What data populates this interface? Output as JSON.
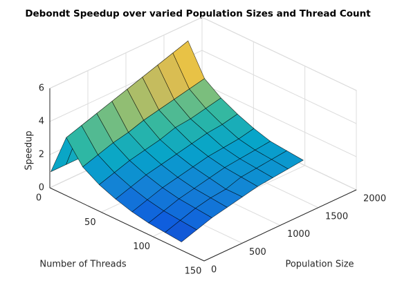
{
  "chart_data": {
    "type": "surface",
    "title": "Debondt Speedup over varied Population Sizes and Thread Count",
    "xlabel": "Number of Threads",
    "ylabel": "Population Size",
    "zlabel": "Speedup",
    "x": [
      1,
      16,
      32,
      48,
      64,
      80,
      96,
      112,
      128
    ],
    "y": [
      0,
      200,
      400,
      600,
      800,
      1000,
      1200,
      1400,
      1600
    ],
    "z": [
      [
        1.0,
        1.0,
        1.0,
        1.0,
        1.0,
        1.0,
        1.0,
        1.0,
        1.0
      ],
      [
        3.5,
        3.8,
        4.1,
        4.4,
        4.7,
        5.0,
        5.3,
        5.6,
        5.9
      ],
      [
        2.2,
        2.5,
        2.8,
        3.0,
        3.3,
        3.5,
        3.7,
        3.9,
        4.1
      ],
      [
        1.6,
        1.9,
        2.2,
        2.4,
        2.6,
        2.9,
        3.0,
        3.2,
        3.4
      ],
      [
        1.2,
        1.5,
        1.8,
        2.0,
        2.2,
        2.4,
        2.6,
        2.7,
        2.9
      ],
      [
        0.9,
        1.2,
        1.5,
        1.7,
        1.9,
        2.1,
        2.2,
        2.3,
        2.5
      ],
      [
        0.7,
        1.0,
        1.3,
        1.5,
        1.7,
        1.9,
        2.0,
        2.1,
        2.2
      ],
      [
        0.6,
        0.9,
        1.2,
        1.4,
        1.5,
        1.8,
        1.9,
        2.0,
        2.1
      ],
      [
        0.5,
        0.8,
        1.1,
        1.3,
        1.5,
        1.7,
        1.8,
        1.9,
        2.0
      ]
    ],
    "xlim": [
      0,
      150
    ],
    "xticks": [
      0,
      50,
      100,
      150
    ],
    "ylim": [
      0,
      2000
    ],
    "yticks": [
      0,
      500,
      1000,
      1500,
      2000
    ],
    "zlim": [
      0,
      6
    ],
    "zticks": [
      0,
      2,
      4,
      6
    ],
    "grid": true,
    "colormap": [
      "#352a87",
      "#0f5cdd",
      "#1481d6",
      "#06a4ca",
      "#2eb7a4",
      "#87bf77",
      "#d1bb59",
      "#fec832",
      "#f9fb0e"
    ]
  }
}
